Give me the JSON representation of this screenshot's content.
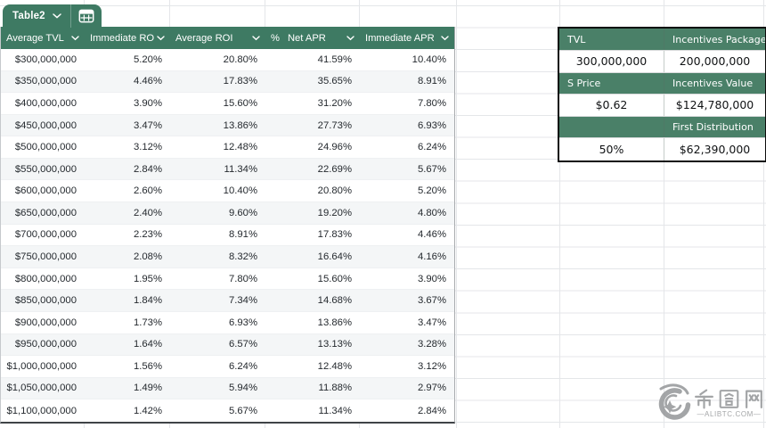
{
  "tab": {
    "label": "Table2"
  },
  "colors": {
    "table_header_green": "#3e7a63",
    "panel_header_green": "#4a8068",
    "alt_row": "#f4f6f7",
    "panel_border": "#0c0c0c"
  },
  "table": {
    "columns": [
      {
        "prefix": "",
        "label": "Average TVL"
      },
      {
        "prefix": "",
        "label": "Immediate RO"
      },
      {
        "prefix": "",
        "label": "Average ROI"
      },
      {
        "prefix": "%",
        "label": "Net APR"
      },
      {
        "prefix": "",
        "label": "Immediate APR"
      }
    ],
    "rows": [
      [
        "$300,000,000",
        "5.20%",
        "20.80%",
        "41.59%",
        "10.40%"
      ],
      [
        "$350,000,000",
        "4.46%",
        "17.83%",
        "35.65%",
        "8.91%"
      ],
      [
        "$400,000,000",
        "3.90%",
        "15.60%",
        "31.20%",
        "7.80%"
      ],
      [
        "$450,000,000",
        "3.47%",
        "13.86%",
        "27.73%",
        "6.93%"
      ],
      [
        "$500,000,000",
        "3.12%",
        "12.48%",
        "24.96%",
        "6.24%"
      ],
      [
        "$550,000,000",
        "2.84%",
        "11.34%",
        "22.69%",
        "5.67%"
      ],
      [
        "$600,000,000",
        "2.60%",
        "10.40%",
        "20.80%",
        "5.20%"
      ],
      [
        "$650,000,000",
        "2.40%",
        "9.60%",
        "19.20%",
        "4.80%"
      ],
      [
        "$700,000,000",
        "2.23%",
        "8.91%",
        "17.83%",
        "4.46%"
      ],
      [
        "$750,000,000",
        "2.08%",
        "8.32%",
        "16.64%",
        "4.16%"
      ],
      [
        "$800,000,000",
        "1.95%",
        "7.80%",
        "15.60%",
        "3.90%"
      ],
      [
        "$850,000,000",
        "1.84%",
        "7.34%",
        "14.68%",
        "3.67%"
      ],
      [
        "$900,000,000",
        "1.73%",
        "6.93%",
        "13.86%",
        "3.47%"
      ],
      [
        "$950,000,000",
        "1.64%",
        "6.57%",
        "13.13%",
        "3.28%"
      ],
      [
        "$1,000,000,000",
        "1.56%",
        "6.24%",
        "12.48%",
        "3.12%"
      ],
      [
        "$1,050,000,000",
        "1.49%",
        "5.94%",
        "11.88%",
        "2.97%"
      ],
      [
        "$1,100,000,000",
        "1.42%",
        "5.67%",
        "11.34%",
        "2.84%"
      ]
    ]
  },
  "side_panel": {
    "rows": [
      {
        "type": "header",
        "cells": [
          "TVL",
          "Incentives Package"
        ]
      },
      {
        "type": "value",
        "cells": [
          "300,000,000",
          "200,000,000"
        ]
      },
      {
        "type": "header",
        "cells": [
          "S Price",
          "Incentives Value"
        ]
      },
      {
        "type": "value",
        "cells": [
          "$0.62",
          "$124,780,000"
        ]
      },
      {
        "type": "header",
        "cells": [
          "",
          "First Distribution"
        ]
      },
      {
        "type": "value",
        "cells": [
          "50%",
          "$62,390,000"
        ]
      }
    ]
  },
  "watermark": {
    "text": "币圈网",
    "site": "—ALIBTC.COM—"
  }
}
